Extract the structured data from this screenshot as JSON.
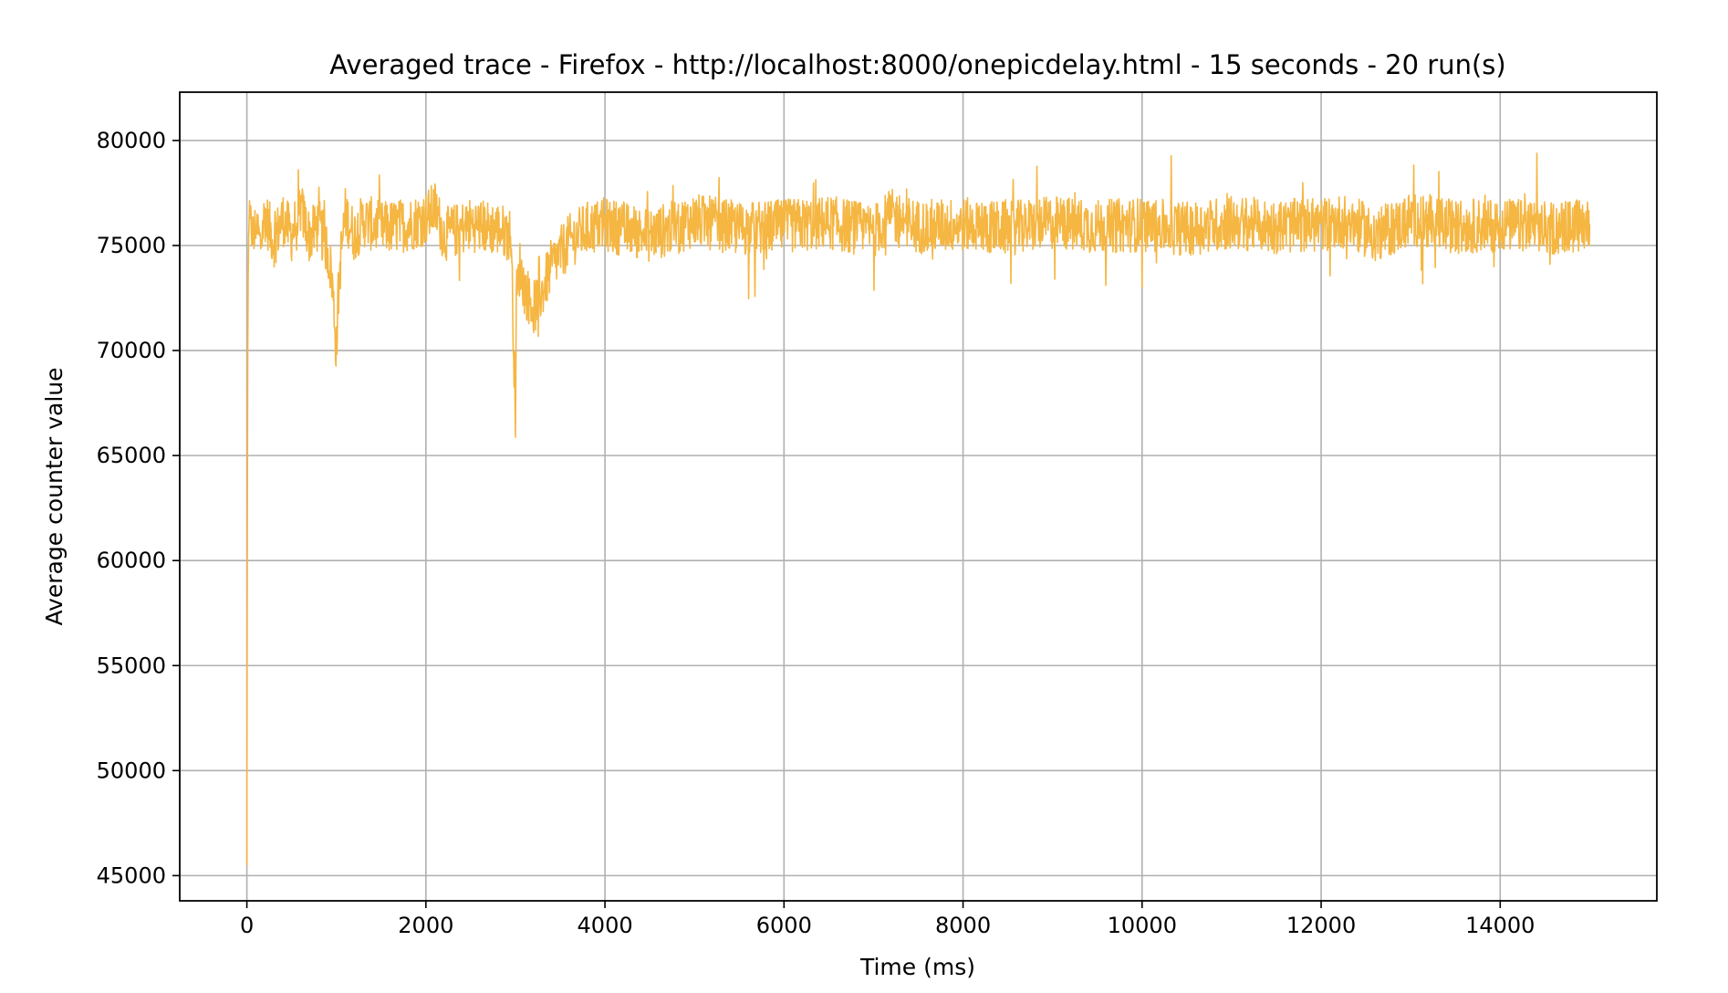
{
  "chart_data": {
    "type": "line",
    "title": "Averaged trace - Firefox - http://localhost:8000/onepicdelay.html - 15 seconds - 20 run(s)",
    "xlabel": "Time (ms)",
    "ylabel": "Average counter value",
    "xlim": [
      -750,
      15750
    ],
    "ylim": [
      43800,
      82300
    ],
    "xticks": [
      0,
      2000,
      4000,
      6000,
      8000,
      10000,
      12000,
      14000
    ],
    "yticks": [
      45000,
      50000,
      55000,
      60000,
      65000,
      70000,
      75000,
      80000
    ],
    "grid": true,
    "series": [
      {
        "color": "#f5b642",
        "x": [
          0,
          5,
          10,
          15,
          20,
          30,
          50,
          80,
          100,
          150,
          200,
          300,
          400,
          500,
          600,
          700,
          800,
          900,
          950,
          1000,
          1020,
          1050,
          1100,
          1200,
          1300,
          1500,
          1800,
          2000,
          2100,
          2200,
          2500,
          2800,
          2950,
          3000,
          3010,
          3050,
          3100,
          3200,
          3300,
          3400,
          3600,
          3800,
          4000,
          4500,
          5000,
          5500,
          6000,
          6500,
          7000,
          7200,
          7500,
          8000,
          8500,
          9000,
          9500,
          10000,
          10500,
          11000,
          11500,
          12000,
          12300,
          12600,
          12900,
          13000,
          13500,
          14000,
          14500,
          15000
        ],
        "values": [
          45500,
          61500,
          70000,
          73500,
          75500,
          75800,
          76000,
          75200,
          76200,
          75000,
          76500,
          75200,
          76300,
          75500,
          76800,
          75400,
          76000,
          74800,
          73500,
          70000,
          72500,
          74500,
          76500,
          75500,
          76200,
          75800,
          76000,
          76300,
          76800,
          75500,
          76000,
          75800,
          75500,
          67000,
          72500,
          74000,
          73000,
          72000,
          72800,
          74000,
          75200,
          75800,
          76000,
          75500,
          76200,
          75800,
          75900,
          76100,
          75700,
          76400,
          75900,
          76000,
          75800,
          76100,
          75900,
          76000,
          75800,
          76100,
          75900,
          76000,
          76200,
          75500,
          76000,
          76300,
          75900,
          76000,
          75800,
          76000
        ]
      }
    ]
  }
}
